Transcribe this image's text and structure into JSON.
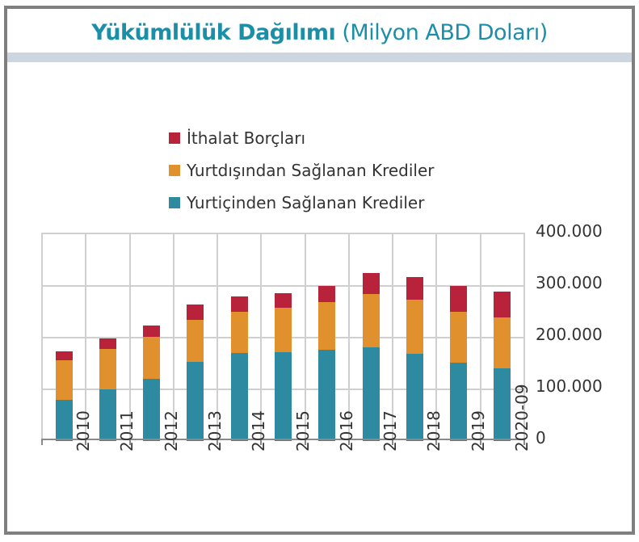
{
  "title": {
    "bold": "Yükümlülük Dağılımı",
    "regular": "(Milyon ABD Doları)"
  },
  "colors": {
    "ithalat": "#b8223a",
    "yurtdisi": "#e0902c",
    "yurtici": "#2d8aa1",
    "title": "#1b8fa8",
    "title_bar": "#cdd5e1",
    "frame": "#7f7f7f"
  },
  "legend": [
    {
      "label": "İthalat Borçları",
      "color": "#b8223a"
    },
    {
      "label": "Yurtdışından Sağlanan Krediler",
      "color": "#e0902c"
    },
    {
      "label": "Yurtiçinden Sağlanan Krediler",
      "color": "#2d8aa1"
    }
  ],
  "y_ticks": [
    "400.000",
    "300.000",
    "200.000",
    "100.000",
    "0"
  ],
  "chart_data": {
    "type": "bar",
    "stacked": true,
    "title": "Yükümlülük Dağılımı (Milyon ABD Doları)",
    "xlabel": "",
    "ylabel": "",
    "ylim": [
      0,
      400000
    ],
    "y_axis_position": "right",
    "grid": true,
    "legend_position": "top",
    "categories": [
      "2010",
      "2011",
      "2012",
      "2013",
      "2014",
      "2015",
      "2016",
      "2017",
      "2018",
      "2019",
      "2020-09"
    ],
    "series": [
      {
        "name": "Yurtiçinden Sağlanan Krediler",
        "color": "#2d8aa1",
        "values": [
          80000,
          100000,
          120000,
          153000,
          170000,
          172000,
          177000,
          181000,
          169000,
          152000,
          141000
        ]
      },
      {
        "name": "Yurtdışından Sağlanan Krediler",
        "color": "#e0902c",
        "values": [
          76000,
          78000,
          82000,
          81000,
          80000,
          86000,
          92000,
          103000,
          104000,
          98000,
          98000
        ]
      },
      {
        "name": "İthalat Borçları",
        "color": "#b8223a",
        "values": [
          17000,
          20000,
          21000,
          30000,
          30000,
          28000,
          31000,
          41000,
          44000,
          50000,
          50000
        ]
      }
    ]
  }
}
